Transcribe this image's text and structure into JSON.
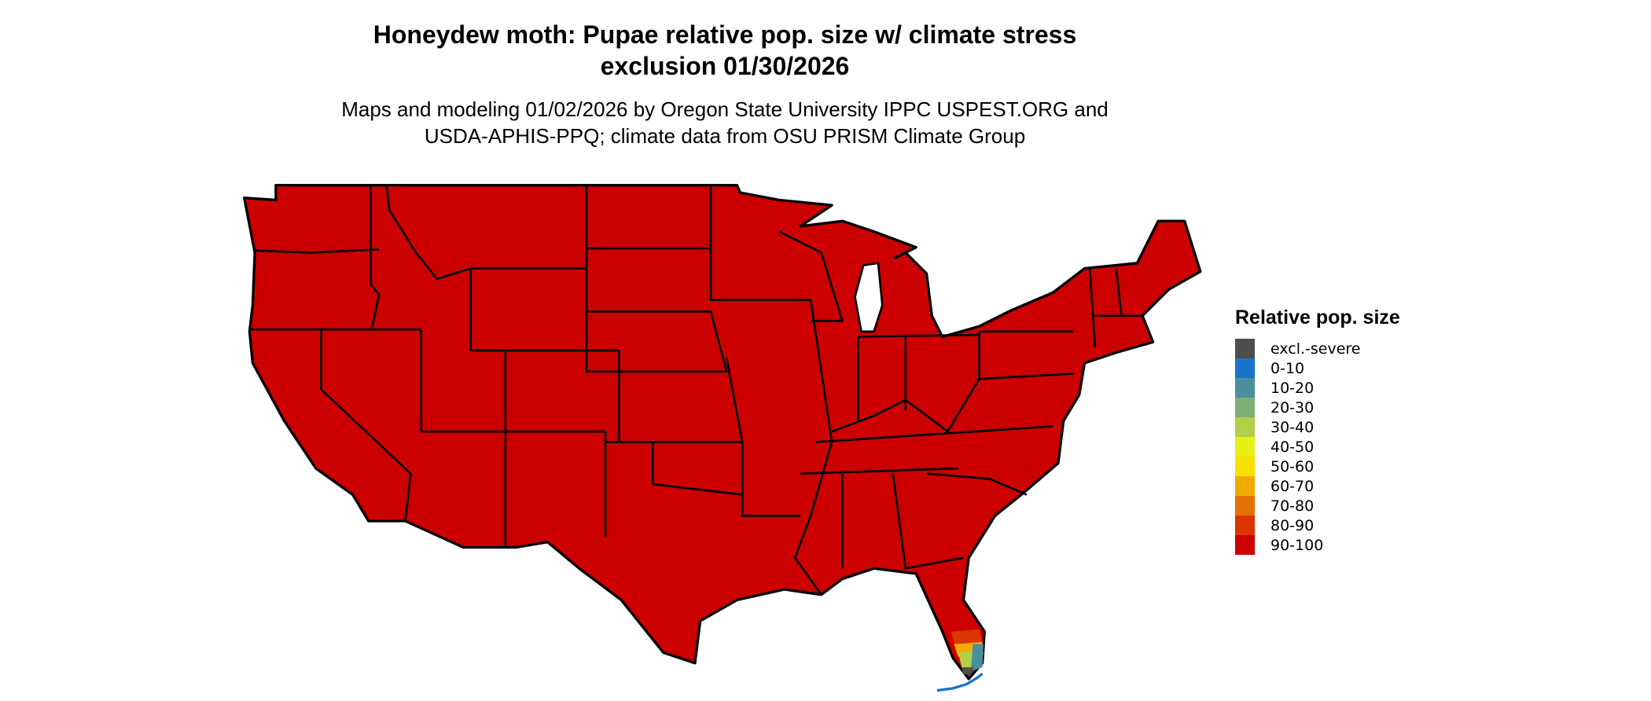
{
  "title_line1": "Honeydew moth: Pupae relative pop. size w/ climate stress",
  "title_line2": "exclusion 01/30/2026",
  "subtitle_line1": "Maps and modeling 01/02/2026 by Oregon State University IPPC USPEST.ORG and",
  "subtitle_line2": "USDA-APHIS-PPQ; climate data from OSU PRISM Climate Group",
  "legend": {
    "title": "Relative pop. size",
    "items": [
      {
        "label": "excl.-severe",
        "color": "#4d4d4d"
      },
      {
        "label": "0-10",
        "color": "#1874cd"
      },
      {
        "label": "10-20",
        "color": "#4a8f9d"
      },
      {
        "label": "20-30",
        "color": "#7fb073"
      },
      {
        "label": "30-40",
        "color": "#b2d045"
      },
      {
        "label": "40-50",
        "color": "#e6f014"
      },
      {
        "label": "50-60",
        "color": "#f8e000"
      },
      {
        "label": "60-70",
        "color": "#efab00"
      },
      {
        "label": "70-80",
        "color": "#e47200"
      },
      {
        "label": "80-90",
        "color": "#db3500"
      },
      {
        "label": "90-100",
        "color": "#cc0000"
      }
    ]
  },
  "map": {
    "region": "Contiguous United States",
    "dominant_class": "90-100",
    "south_florida_classes": [
      "80-90",
      "70-80",
      "60-70",
      "50-60",
      "30-40",
      "20-30",
      "10-20",
      "0-10",
      "excl.-severe"
    ],
    "florida_keys_class": "0-10"
  }
}
